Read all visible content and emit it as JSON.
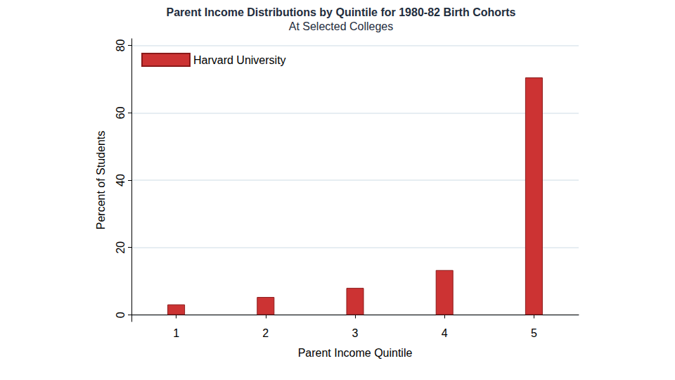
{
  "chart_data": {
    "type": "bar",
    "title": "Parent Income Distributions by Quintile for 1980-82 Birth Cohorts",
    "subtitle": "At Selected Colleges",
    "x_label": "Parent Income Quintile",
    "y_label": "Percent of Students",
    "categories": [
      "1",
      "2",
      "3",
      "4",
      "5"
    ],
    "series": [
      {
        "name": "Harvard University",
        "color": "#cc3333",
        "values": [
          3.1,
          5.3,
          8,
          13.3,
          70.5
        ]
      }
    ],
    "ylim": [
      -2,
      82
    ],
    "yticks": [
      0,
      20,
      40,
      60,
      80
    ],
    "grid": true,
    "legend": "top-left"
  }
}
